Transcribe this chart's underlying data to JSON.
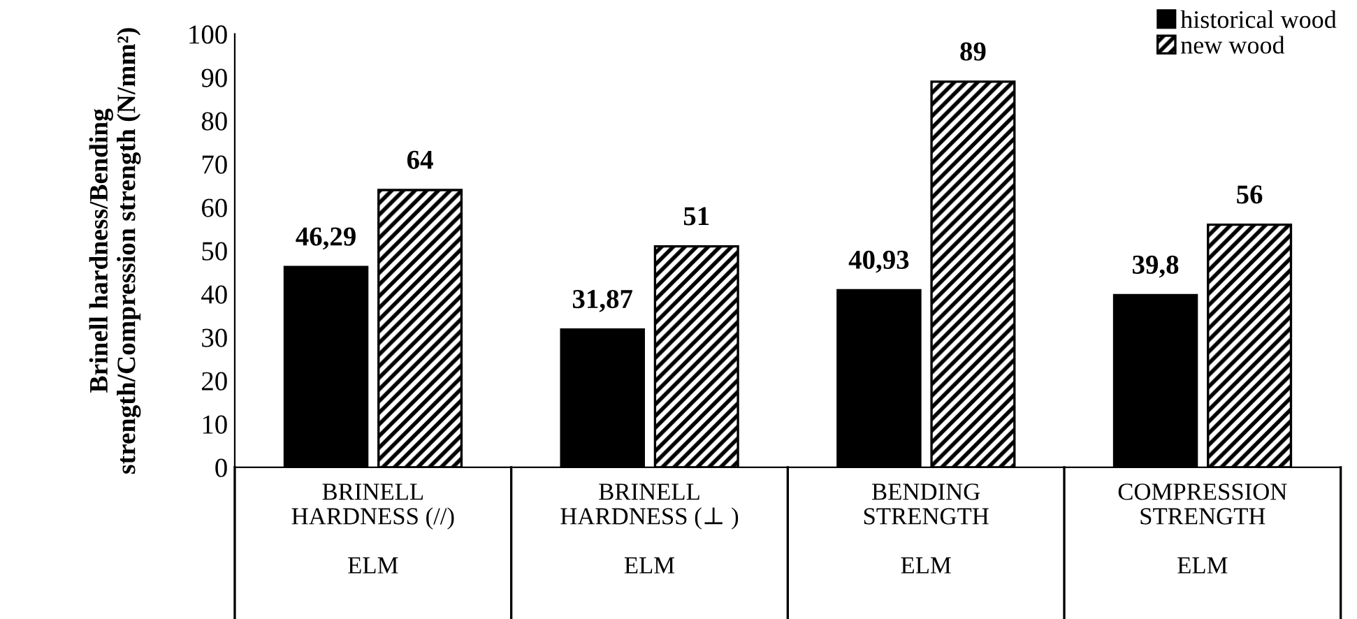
{
  "chart_data": {
    "type": "bar",
    "ylabel": "Brinell hardness/Bending strength/Compression strength (N/mm²)",
    "categories": [
      "BRINELL\nHARDNESS (//)\n\nELM",
      "BRINELL\nHARDNESS (⊥ )\n\nELM",
      "BENDING\nSTRENGTH\n\nELM",
      "COMPRESSION\nSTRENGTH\n\nELM"
    ],
    "series": [
      {
        "name": "historical wood",
        "color": "#000000",
        "values": [
          46.29,
          31.87,
          40.93,
          39.8
        ],
        "value_labels": [
          "46,29",
          "31,87",
          "40,93",
          "39,8"
        ]
      },
      {
        "name": "new wood",
        "color": "#000000",
        "values": [
          64,
          51,
          89,
          56
        ],
        "value_labels": [
          "64",
          "51",
          "89",
          "56"
        ]
      }
    ],
    "ylim": [
      0,
      100
    ],
    "yticks": [
      0,
      10,
      20,
      30,
      40,
      50,
      60,
      70,
      80,
      90,
      100
    ],
    "grid": false,
    "legend": "top right"
  }
}
